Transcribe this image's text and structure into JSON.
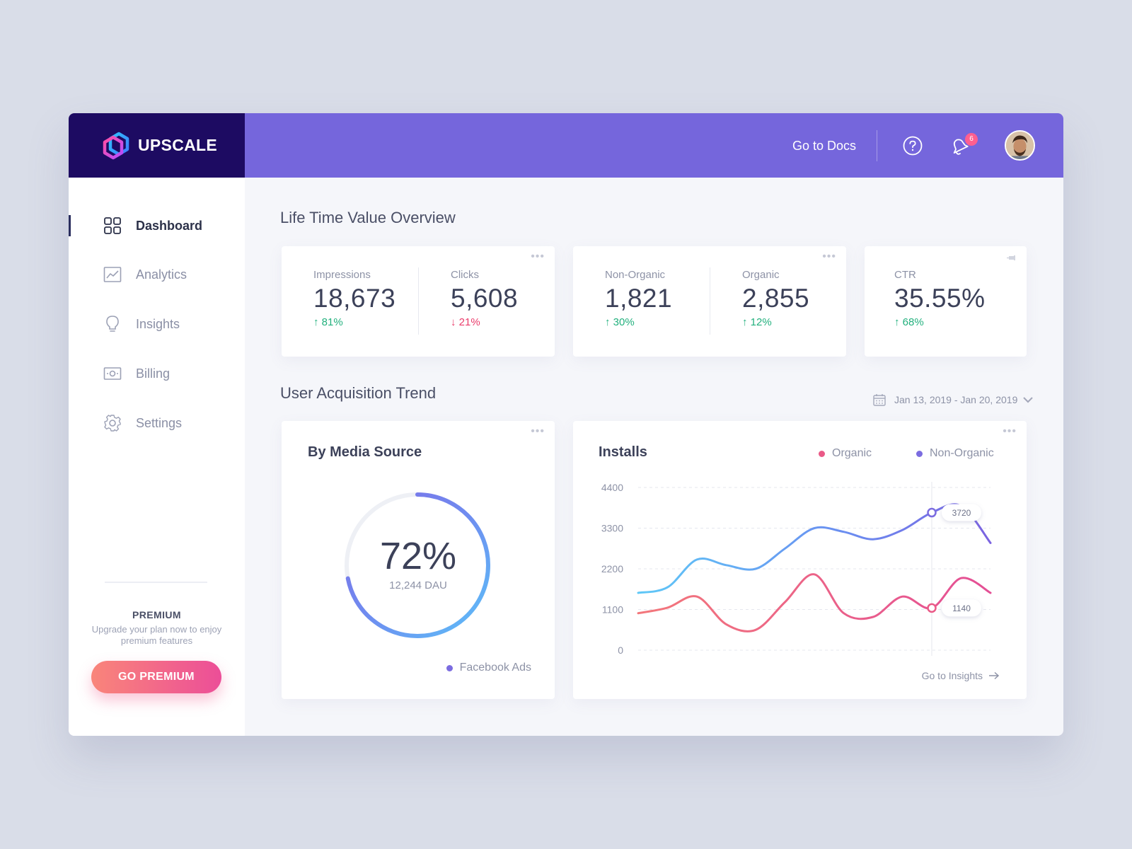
{
  "brand": {
    "name": "UPSCALE"
  },
  "topbar": {
    "docs_label": "Go to Docs",
    "notification_count": "6"
  },
  "sidebar": {
    "items": [
      {
        "label": "Dashboard",
        "icon": "grid-icon",
        "active": true
      },
      {
        "label": "Analytics",
        "icon": "chart-icon",
        "active": false
      },
      {
        "label": "Insights",
        "icon": "lightbulb-icon",
        "active": false
      },
      {
        "label": "Billing",
        "icon": "money-icon",
        "active": false
      },
      {
        "label": "Settings",
        "icon": "gear-icon",
        "active": false
      }
    ],
    "premium": {
      "title": "PREMIUM",
      "text": "Upgrade your plan now to enjoy premium features",
      "button": "GO PREMIUM"
    }
  },
  "overview": {
    "title": "Life Time Value Overview",
    "stats": [
      {
        "label": "Impressions",
        "value": "18,673",
        "change": "81%",
        "direction": "up"
      },
      {
        "label": "Clicks",
        "value": "5,608",
        "change": "21%",
        "direction": "down"
      },
      {
        "label": "Non-Organic",
        "value": "1,821",
        "change": "30%",
        "direction": "up"
      },
      {
        "label": "Organic",
        "value": "2,855",
        "change": "12%",
        "direction": "up"
      },
      {
        "label": "CTR",
        "value": "35.55%",
        "change": "68%",
        "direction": "up"
      }
    ]
  },
  "acquisition": {
    "title": "User Acquisition Trend",
    "date_range": "Jan 13, 2019 - Jan 20, 2019",
    "media": {
      "title": "By Media Source",
      "percent": "72%",
      "percent_value": 0.72,
      "sub": "12,244 DAU",
      "legend": "Facebook Ads"
    },
    "installs": {
      "title": "Installs",
      "legend": [
        "Organic",
        "Non-Organic"
      ],
      "link": "Go to Insights"
    }
  },
  "colors": {
    "brand_dark": "#1d0b62",
    "header": "#7566dc",
    "organic": "#ea5a87",
    "non_organic": "#7b6ce0",
    "up": "#22b07d",
    "down": "#ea3c6b"
  },
  "chart_data": {
    "type": "line",
    "title": "Installs",
    "ylim": [
      0,
      4400
    ],
    "yticks": [
      "4400",
      "3300",
      "2200",
      "1100",
      "0"
    ],
    "x": [
      0,
      1,
      2,
      3,
      4,
      5,
      6,
      7,
      8,
      9,
      10,
      11,
      12
    ],
    "series": [
      {
        "name": "Non-Organic",
        "values": [
          1550,
          1700,
          2450,
          2300,
          2200,
          2750,
          3300,
          3200,
          3000,
          3250,
          3720,
          3900,
          2900
        ]
      },
      {
        "name": "Organic",
        "values": [
          1000,
          1150,
          1450,
          700,
          550,
          1300,
          2050,
          1000,
          900,
          1450,
          1140,
          1950,
          1550
        ]
      }
    ],
    "annotations": [
      {
        "series": "Non-Organic",
        "x": 10,
        "label": "3720"
      },
      {
        "series": "Organic",
        "x": 10,
        "label": "1140"
      }
    ],
    "grid": true,
    "legend_position": "top-right"
  }
}
